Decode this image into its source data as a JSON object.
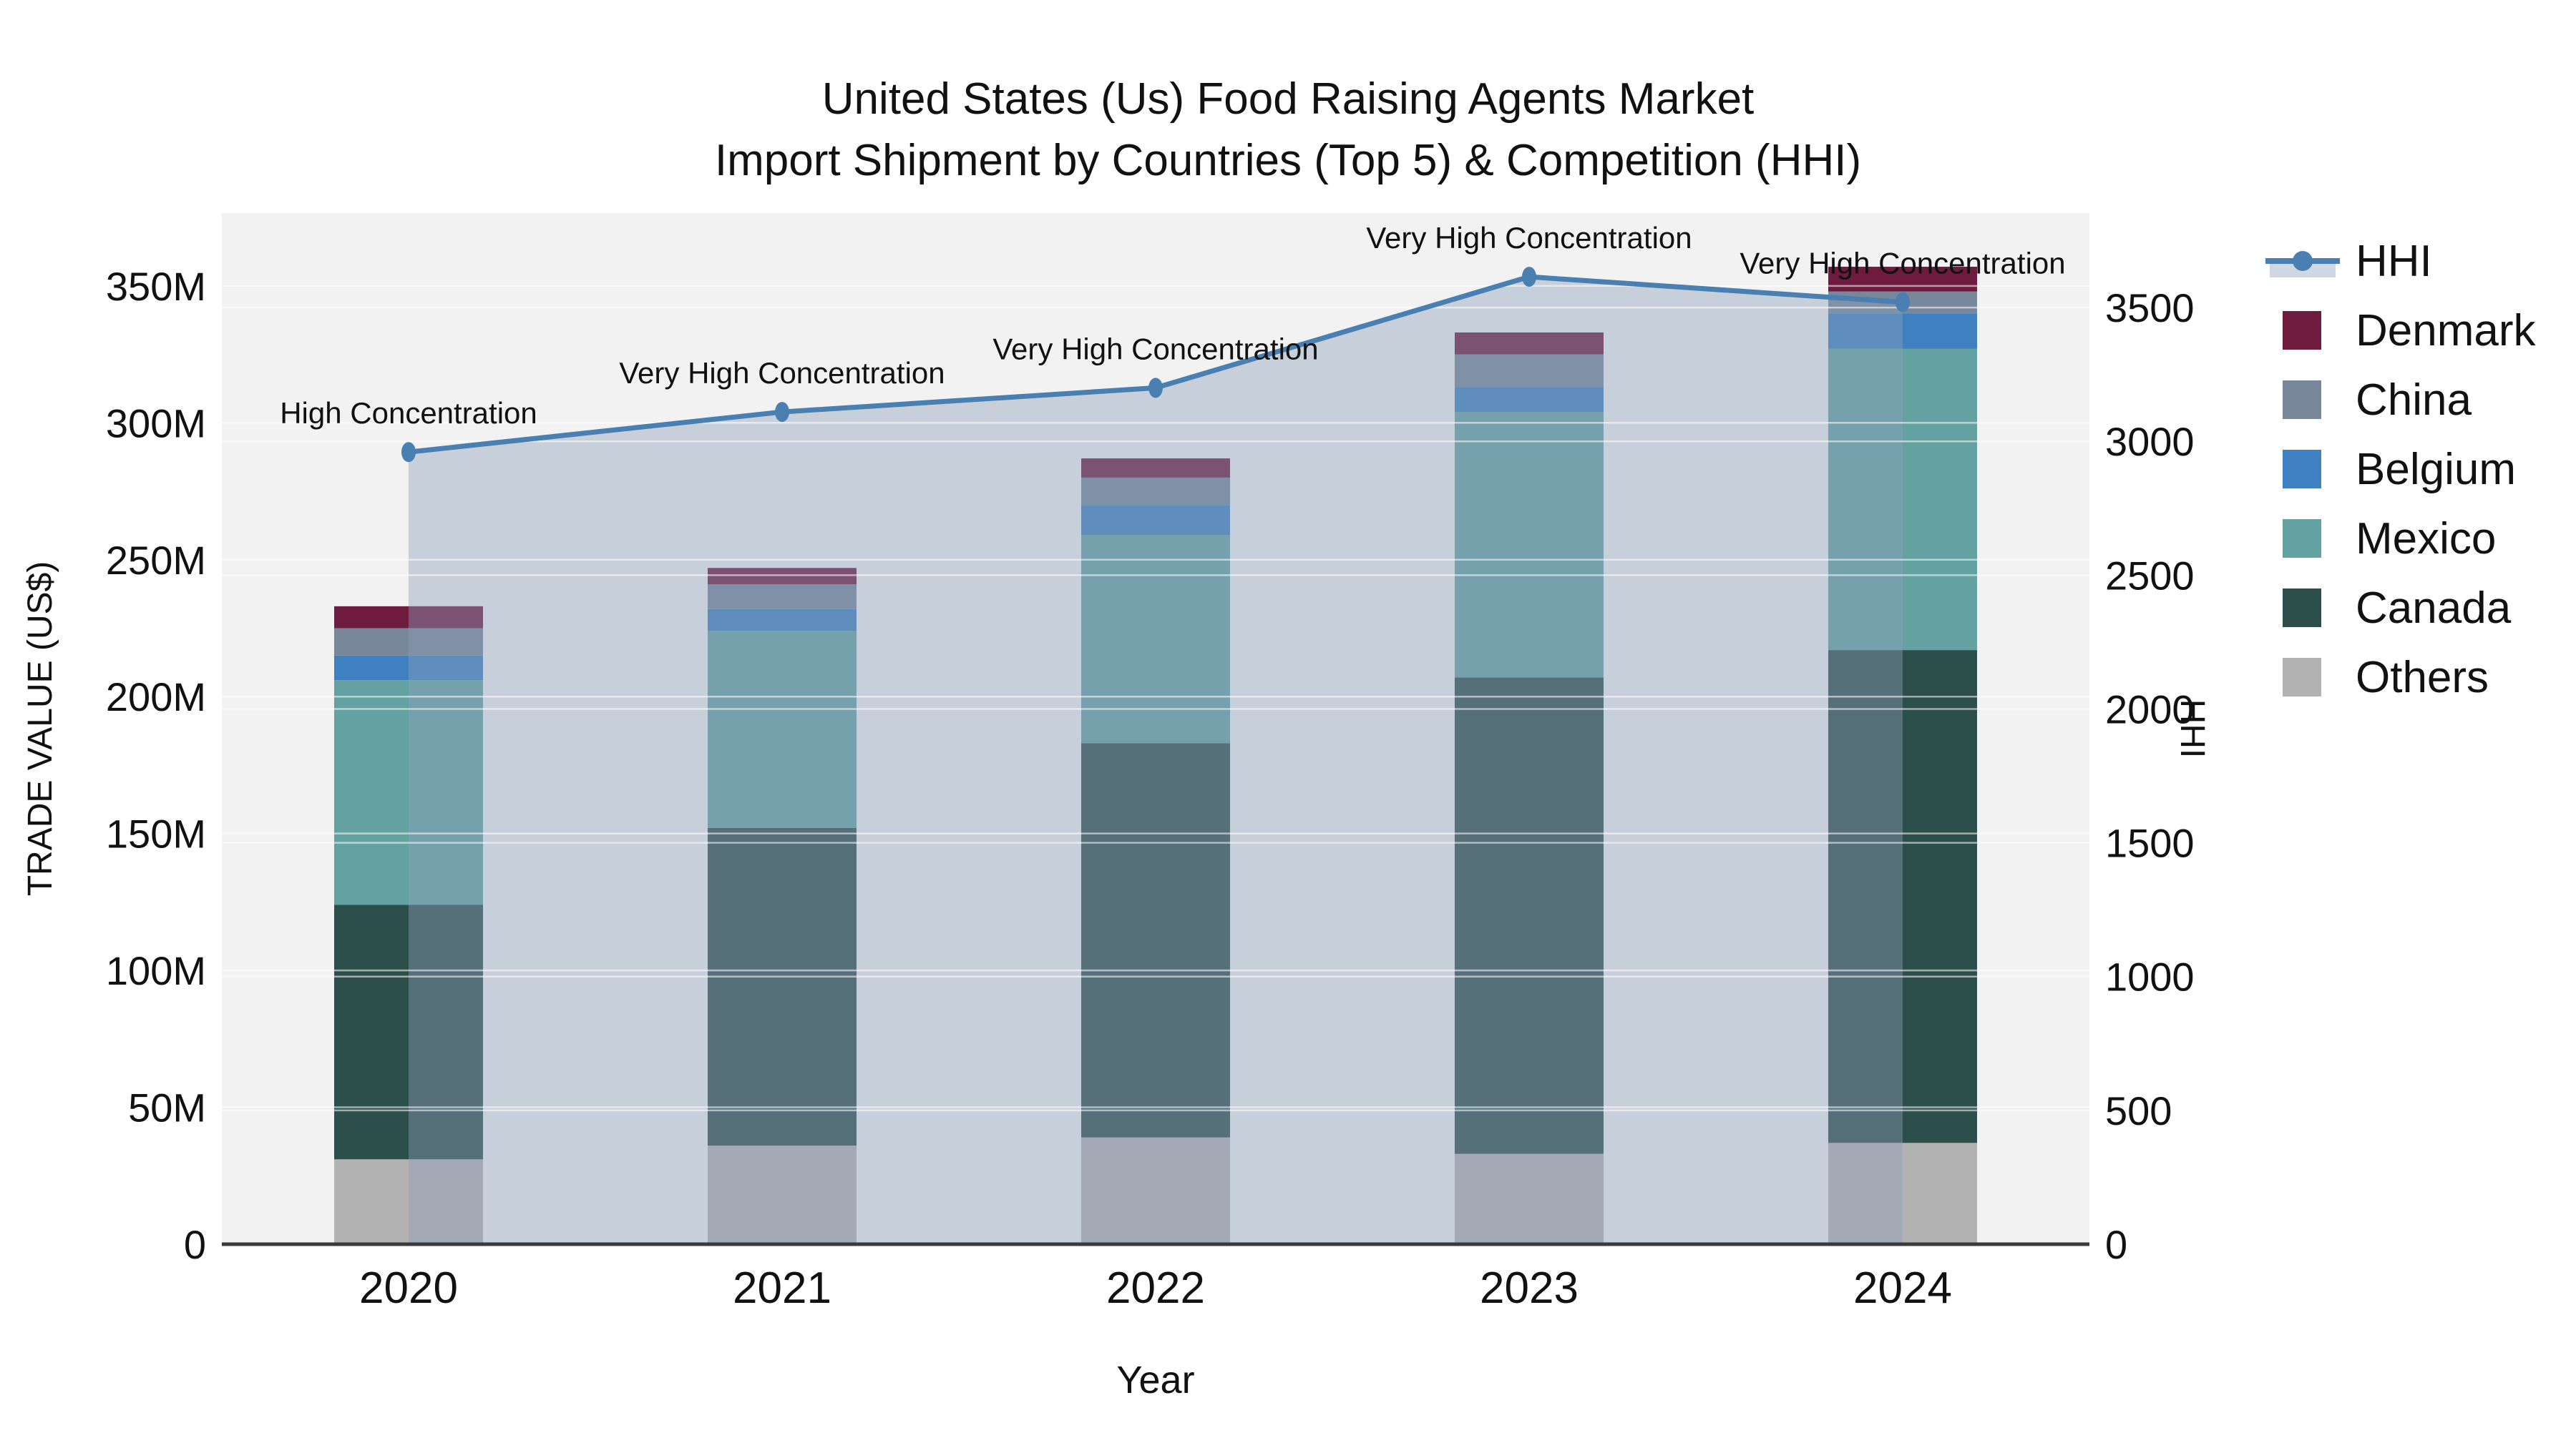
{
  "title": {
    "line1": "United States (Us) Food Raising Agents Market",
    "line2": "Import Shipment by Countries (Top 5) & Competition (HHI)"
  },
  "chart_data": {
    "type": "combo-stacked-bar-line",
    "categories": [
      "2020",
      "2021",
      "2022",
      "2023",
      "2024"
    ],
    "bar_series": [
      {
        "name": "Others",
        "color": "#b3b2b2",
        "values": [
          31,
          36,
          39,
          33,
          37
        ]
      },
      {
        "name": "Canada",
        "color": "#2d4f4b",
        "values": [
          93,
          116,
          144,
          174,
          180
        ]
      },
      {
        "name": "Mexico",
        "color": "#63a2a0",
        "values": [
          82,
          72,
          76,
          97,
          110
        ]
      },
      {
        "name": "Belgium",
        "color": "#3f80c1",
        "values": [
          9,
          8,
          11,
          9,
          13
        ]
      },
      {
        "name": "China",
        "color": "#78879a",
        "values": [
          10,
          9,
          10,
          12,
          8
        ]
      },
      {
        "name": "Denmark",
        "color": "#6e1b3e",
        "values": [
          8,
          6,
          7,
          8,
          9
        ]
      }
    ],
    "bar_totals": [
      233,
      247,
      287,
      333,
      357
    ],
    "line_series": {
      "name": "HHI",
      "values": [
        2960,
        3110,
        3200,
        3615,
        3520
      ],
      "color": "#4a7fb2",
      "area_fill": "rgba(140,160,185,0.42)"
    },
    "annotations": [
      "High Concentration",
      "Very High Concentration",
      "Very High Concentration",
      "Very High Concentration",
      "Very High Concentration"
    ],
    "axes": {
      "left": {
        "title": "TRADE VALUE (US$)",
        "tick_labels": [
          "0",
          "50M",
          "100M",
          "150M",
          "200M",
          "250M",
          "300M",
          "350M"
        ],
        "tick_values": [
          0,
          50,
          100,
          150,
          200,
          250,
          300,
          350
        ],
        "range": [
          0,
          376.6
        ]
      },
      "right": {
        "title": "HHI",
        "tick_labels": [
          "0",
          "500",
          "1000",
          "1500",
          "2000",
          "2500",
          "3000",
          "3500"
        ],
        "tick_values": [
          0,
          500,
          1000,
          1500,
          2000,
          2500,
          3000,
          3500
        ],
        "range": [
          0,
          3853
        ]
      },
      "x": {
        "title": "Year"
      }
    },
    "grid": true,
    "legend_position": "right"
  },
  "legend": {
    "items": [
      {
        "label": "HHI",
        "type": "line-area",
        "color": "#4a7fb2"
      },
      {
        "label": "Denmark",
        "type": "square",
        "color": "#6e1b3e"
      },
      {
        "label": "China",
        "type": "square",
        "color": "#78879a"
      },
      {
        "label": "Belgium",
        "type": "square",
        "color": "#3f80c1"
      },
      {
        "label": "Mexico",
        "type": "square",
        "color": "#63a2a0"
      },
      {
        "label": "Canada",
        "type": "square",
        "color": "#2d4f4b"
      },
      {
        "label": "Others",
        "type": "square",
        "color": "#b3b2b2"
      }
    ]
  },
  "colors": {
    "page_bg": "#ffffff",
    "plot_bg": "#f2f2f2",
    "grid": "rgba(255,255,255,0.55)",
    "axis_line": "#3a3a3a",
    "text": "#111111"
  }
}
